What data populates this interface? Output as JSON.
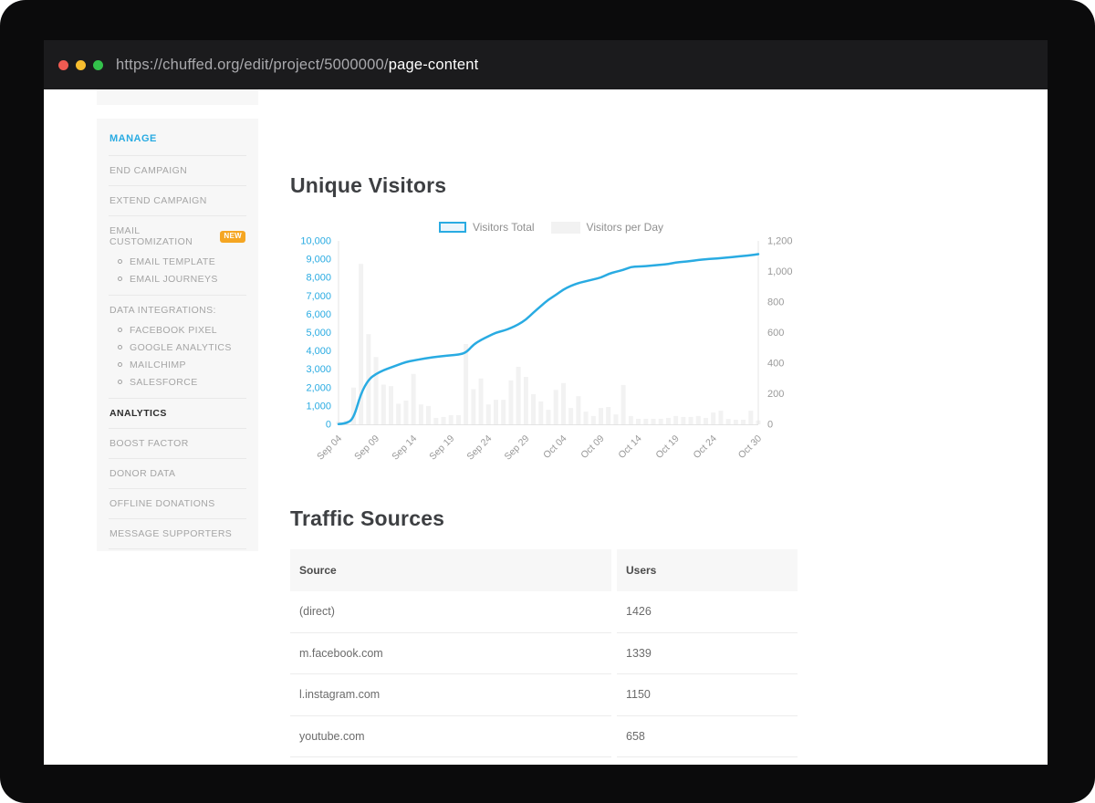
{
  "browser": {
    "url_prefix": "https://chuffed.org/edit/project/5000000/",
    "url_highlight": "page-content",
    "traffic_light_colors": {
      "close": "#f05b52",
      "minimize": "#f7bd2f",
      "zoom": "#33c14b"
    }
  },
  "sidebar": {
    "section_header": "MANAGE",
    "items": {
      "end_campaign": "END CAMPAIGN",
      "extend_campaign": "EXTEND CAMPAIGN",
      "email_customization": "EMAIL CUSTOMIZATION",
      "email_customization_badge": "NEW",
      "email_template": "EMAIL TEMPLATE",
      "email_journeys": "EMAIL JOURNEYS",
      "data_integrations": "DATA INTEGRATIONS:",
      "facebook_pixel": "FACEBOOK PIXEL",
      "google_analytics": "GOOGLE ANALYTICS",
      "mailchimp": "MAILCHIMP",
      "salesforce": "SALESFORCE",
      "analytics": "ANALYTICS",
      "boost_factor": "BOOST FACTOR",
      "donor_data": "DONOR DATA",
      "offline_donations": "OFFLINE DONATIONS",
      "message_supporters": "MESSAGE SUPPORTERS"
    }
  },
  "main": {
    "visitors_heading": "Unique Visitors",
    "traffic_heading": "Traffic Sources",
    "legend": {
      "total_label": "Visitors Total",
      "per_day_label": "Visitors per Day"
    },
    "table": {
      "headers": {
        "source": "Source",
        "users": "Users"
      },
      "rows": [
        {
          "source": "(direct)",
          "users": "1426"
        },
        {
          "source": "m.facebook.com",
          "users": "1339"
        },
        {
          "source": "l.instagram.com",
          "users": "1150"
        },
        {
          "source": "youtube.com",
          "users": "658"
        }
      ]
    }
  },
  "chart_data": {
    "type": "line",
    "title": "Unique Visitors",
    "x_start": "Sep 04",
    "x_end": "Oct 30",
    "days": 57,
    "x_tick_labels": [
      "Sep 04",
      "Sep 09",
      "Sep 14",
      "Sep 19",
      "Sep 24",
      "Sep 29",
      "Oct 04",
      "Oct 09",
      "Oct 14",
      "Oct 19",
      "Oct 24",
      "Oct 30"
    ],
    "x_tick_day_index": [
      0,
      5,
      10,
      15,
      20,
      25,
      30,
      35,
      40,
      45,
      50,
      56
    ],
    "left_axis": {
      "label_series": "Visitors Total",
      "min": 0,
      "max": 10000,
      "step": 1000,
      "color": "#29abe2"
    },
    "right_axis": {
      "label_series": "Visitors per Day",
      "min": 0,
      "max": 1200,
      "step": 200,
      "color": "#9a9a9a"
    },
    "grid": false,
    "legend_position": "top-center",
    "series": [
      {
        "name": "Visitors Total",
        "type": "line",
        "axis": "left",
        "color": "#29abe2",
        "values": [
          10,
          40,
          300,
          1700,
          2450,
          2750,
          2950,
          3100,
          3250,
          3400,
          3480,
          3550,
          3620,
          3680,
          3720,
          3760,
          3800,
          3900,
          4350,
          4600,
          4800,
          5000,
          5100,
          5250,
          5450,
          5700,
          6100,
          6450,
          6800,
          7050,
          7350,
          7550,
          7700,
          7800,
          7900,
          8000,
          8200,
          8320,
          8420,
          8580,
          8600,
          8620,
          8660,
          8700,
          8740,
          8820,
          8860,
          8900,
          8960,
          9000,
          9030,
          9060,
          9100,
          9140,
          9180,
          9220,
          9280
        ]
      },
      {
        "name": "Visitors per Day",
        "type": "bar",
        "axis": "right",
        "color": "#f2f2f2",
        "values": [
          18,
          25,
          240,
          1050,
          590,
          440,
          260,
          250,
          135,
          155,
          330,
          130,
          120,
          42,
          48,
          60,
          60,
          525,
          230,
          300,
          130,
          160,
          160,
          287,
          376,
          310,
          197,
          150,
          95,
          225,
          270,
          107,
          184,
          83,
          54,
          107,
          113,
          65,
          257,
          54,
          36,
          36,
          36,
          36,
          42,
          54,
          48,
          48,
          54,
          42,
          77,
          89,
          35,
          30,
          30,
          89,
          25
        ]
      }
    ]
  }
}
